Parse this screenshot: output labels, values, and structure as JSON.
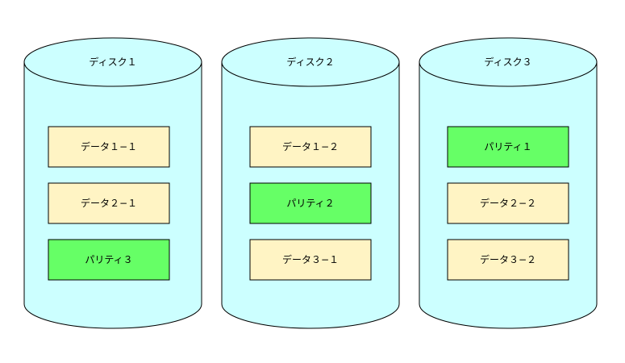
{
  "colors": {
    "disk_fill": "#ccffff",
    "data_block_fill": "#fff4c4",
    "parity_block_fill": "#66ff66",
    "stroke": "#000000"
  },
  "disks": [
    {
      "label": "ディスク１",
      "blocks": [
        {
          "label": "データ１−１",
          "kind": "data"
        },
        {
          "label": "データ２−１",
          "kind": "data"
        },
        {
          "label": "パリティ３",
          "kind": "parity"
        }
      ]
    },
    {
      "label": "ディスク２",
      "blocks": [
        {
          "label": "データ１−２",
          "kind": "data"
        },
        {
          "label": "パリティ２",
          "kind": "parity"
        },
        {
          "label": "データ３−１",
          "kind": "data"
        }
      ]
    },
    {
      "label": "ディスク３",
      "blocks": [
        {
          "label": "パリティ１",
          "kind": "parity"
        },
        {
          "label": "データ２−２",
          "kind": "data"
        },
        {
          "label": "データ３−２",
          "kind": "data"
        }
      ]
    }
  ]
}
